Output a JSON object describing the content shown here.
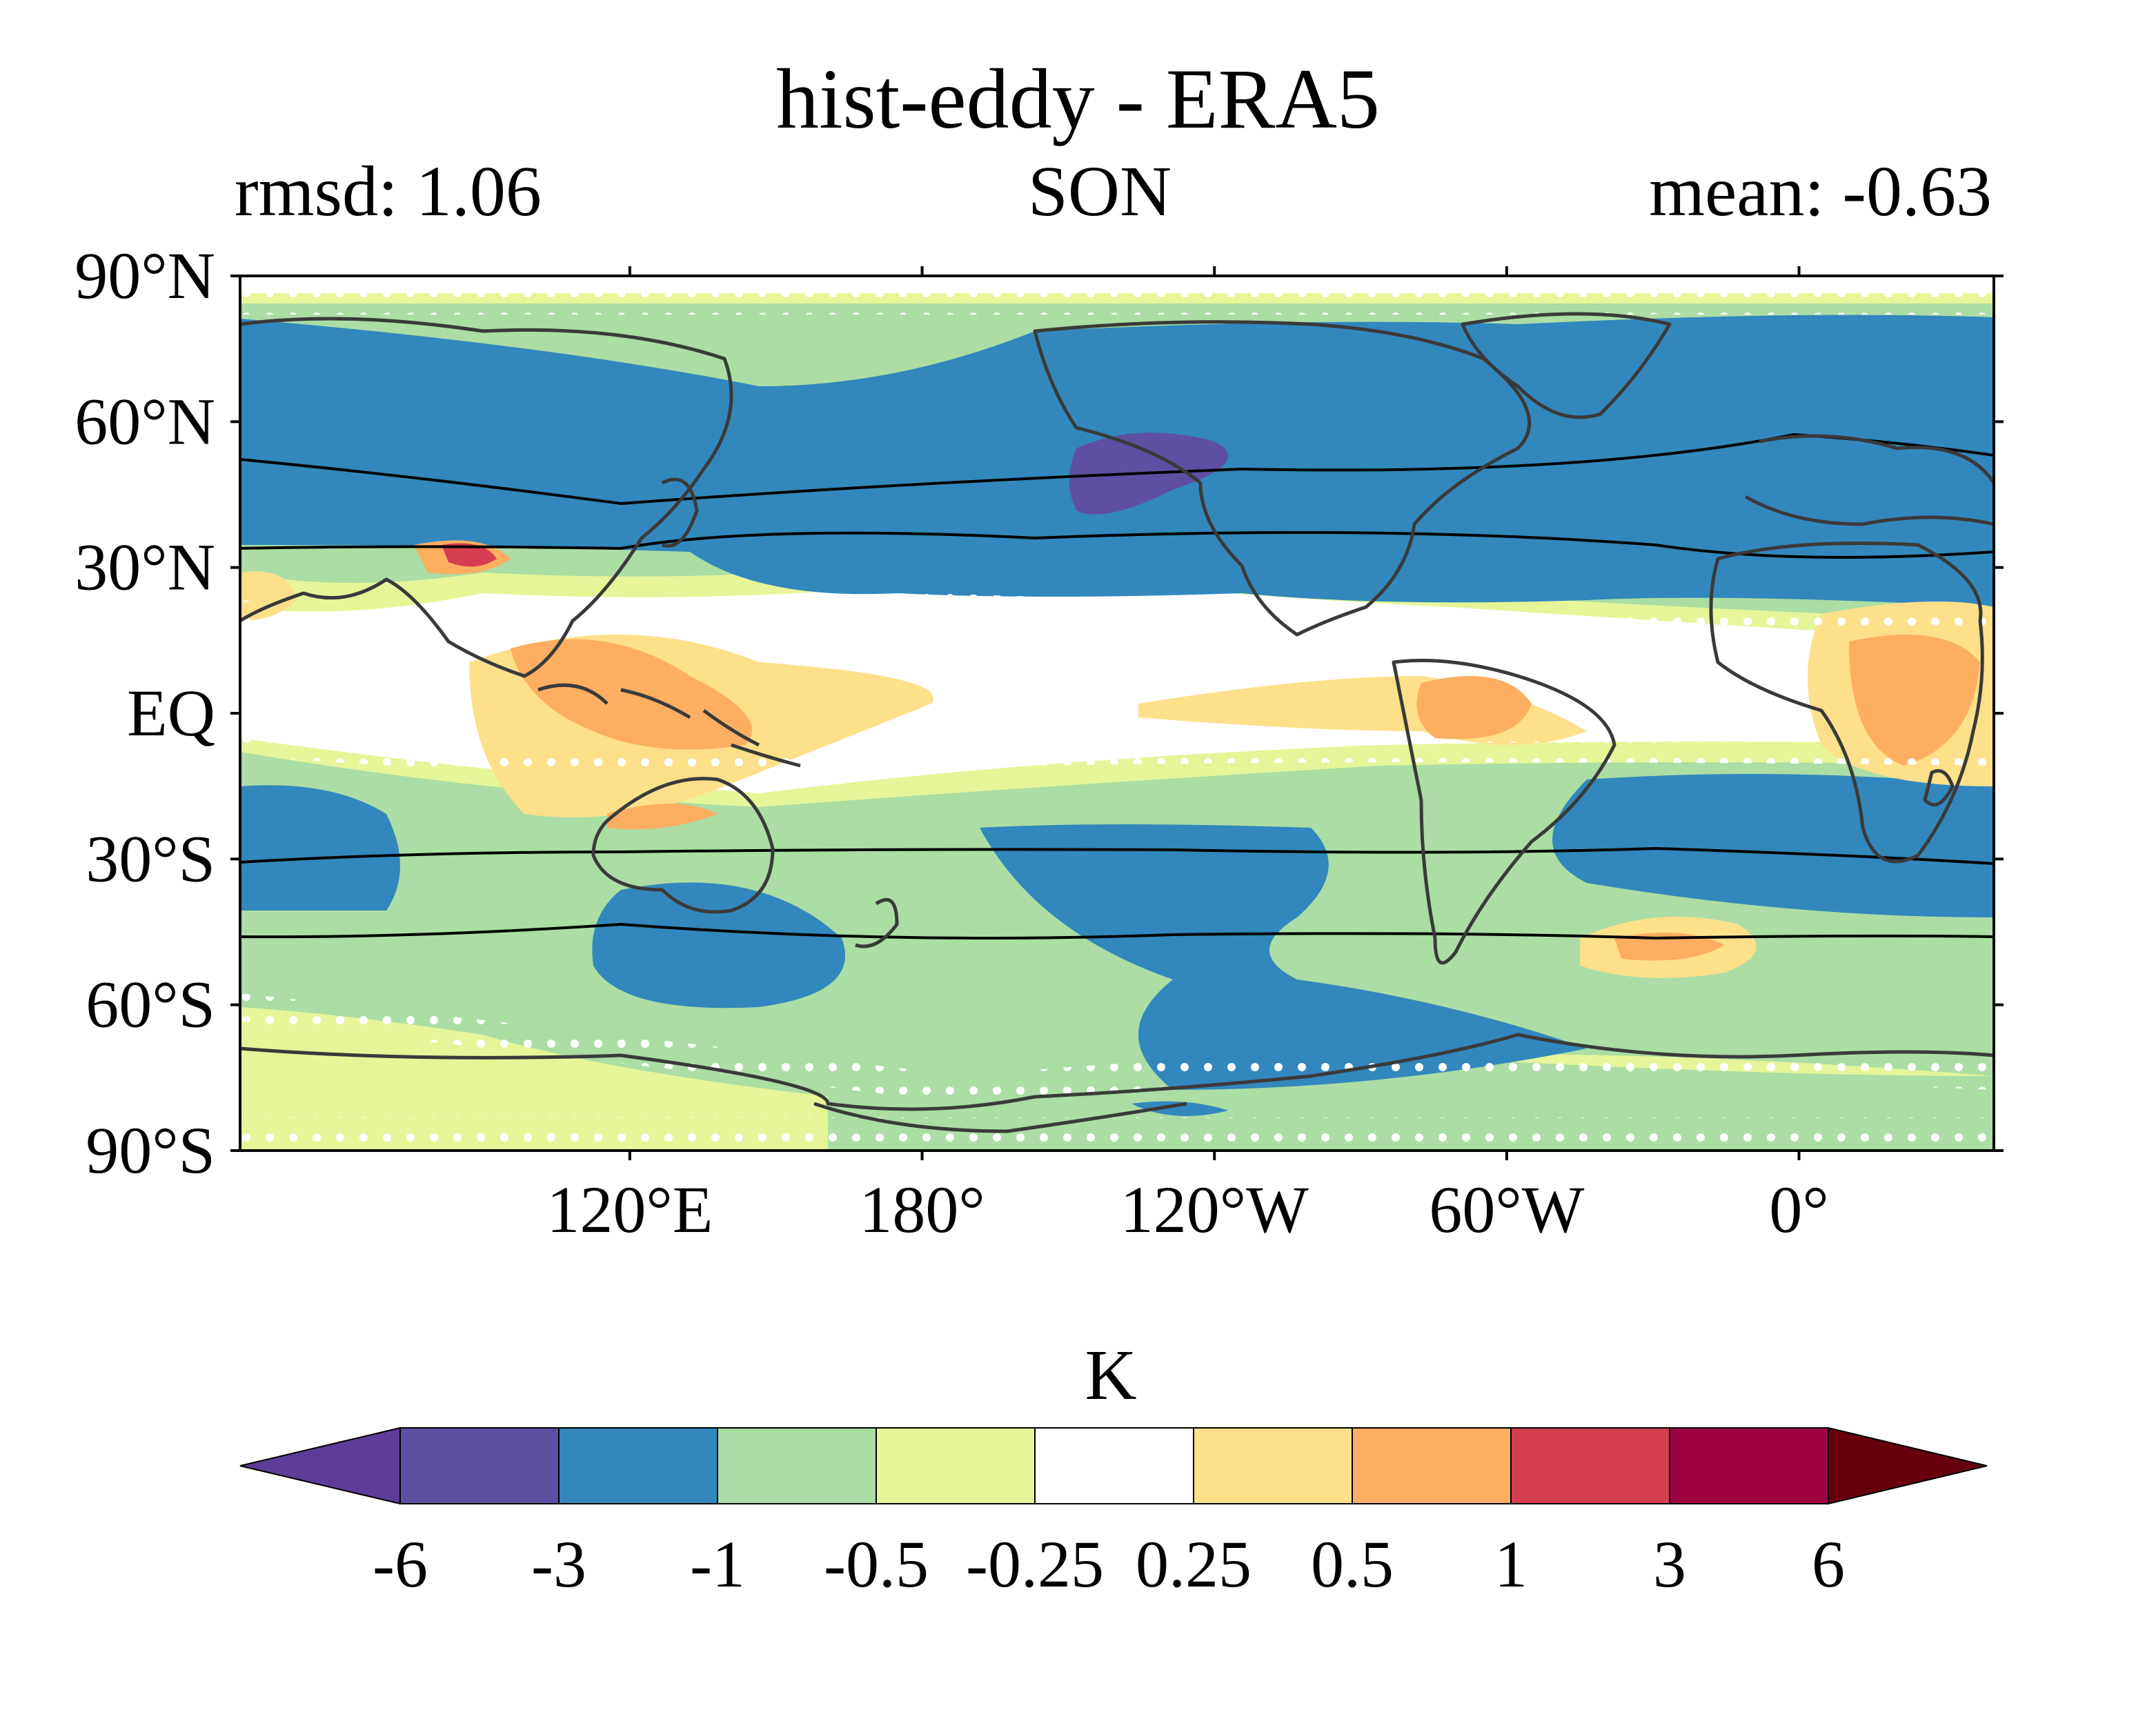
{
  "title": "hist-eddy - ERA5",
  "subtitle_left": "rmsd: 1.06",
  "subtitle_center": "SON",
  "subtitle_right": "mean: -0.63",
  "chart_data": {
    "type": "heatmap",
    "projection": "PlateCarree",
    "region": "global",
    "y_ticks": [
      "90°N",
      "60°N",
      "30°N",
      "EQ",
      "30°S",
      "60°S",
      "90°S"
    ],
    "y_tick_values": [
      90,
      60,
      30,
      0,
      -30,
      -60,
      -90
    ],
    "x_ticks": [
      "120°E",
      "180°",
      "120°W",
      "60°W",
      "0°"
    ],
    "x_tick_values": [
      120,
      180,
      240,
      300,
      360
    ],
    "xlim": [
      40,
      400
    ],
    "ylim": [
      -90,
      90
    ],
    "stippling": "white dots mark areas of non-significant difference",
    "contour_lines": "black jet-latitude lines near 35–52°N and 30–45°S",
    "colorbar": {
      "label": "K",
      "extend": "both",
      "levels": [
        -6,
        -3,
        -1,
        -0.5,
        -0.25,
        0.25,
        0.5,
        1,
        3,
        6
      ],
      "tick_labels": [
        "-6",
        "-3",
        "-1",
        "-0.5",
        "-0.25",
        "0.25",
        "0.5",
        "1",
        "3",
        "6"
      ],
      "colors": [
        "#5e3c99",
        "#5e4fa2",
        "#3288bd",
        "#abdda4",
        "#e6f598",
        "#ffffff",
        "#fee08b",
        "#fdae61",
        "#d53e4f",
        "#9e0142",
        "#67000d"
      ]
    }
  }
}
